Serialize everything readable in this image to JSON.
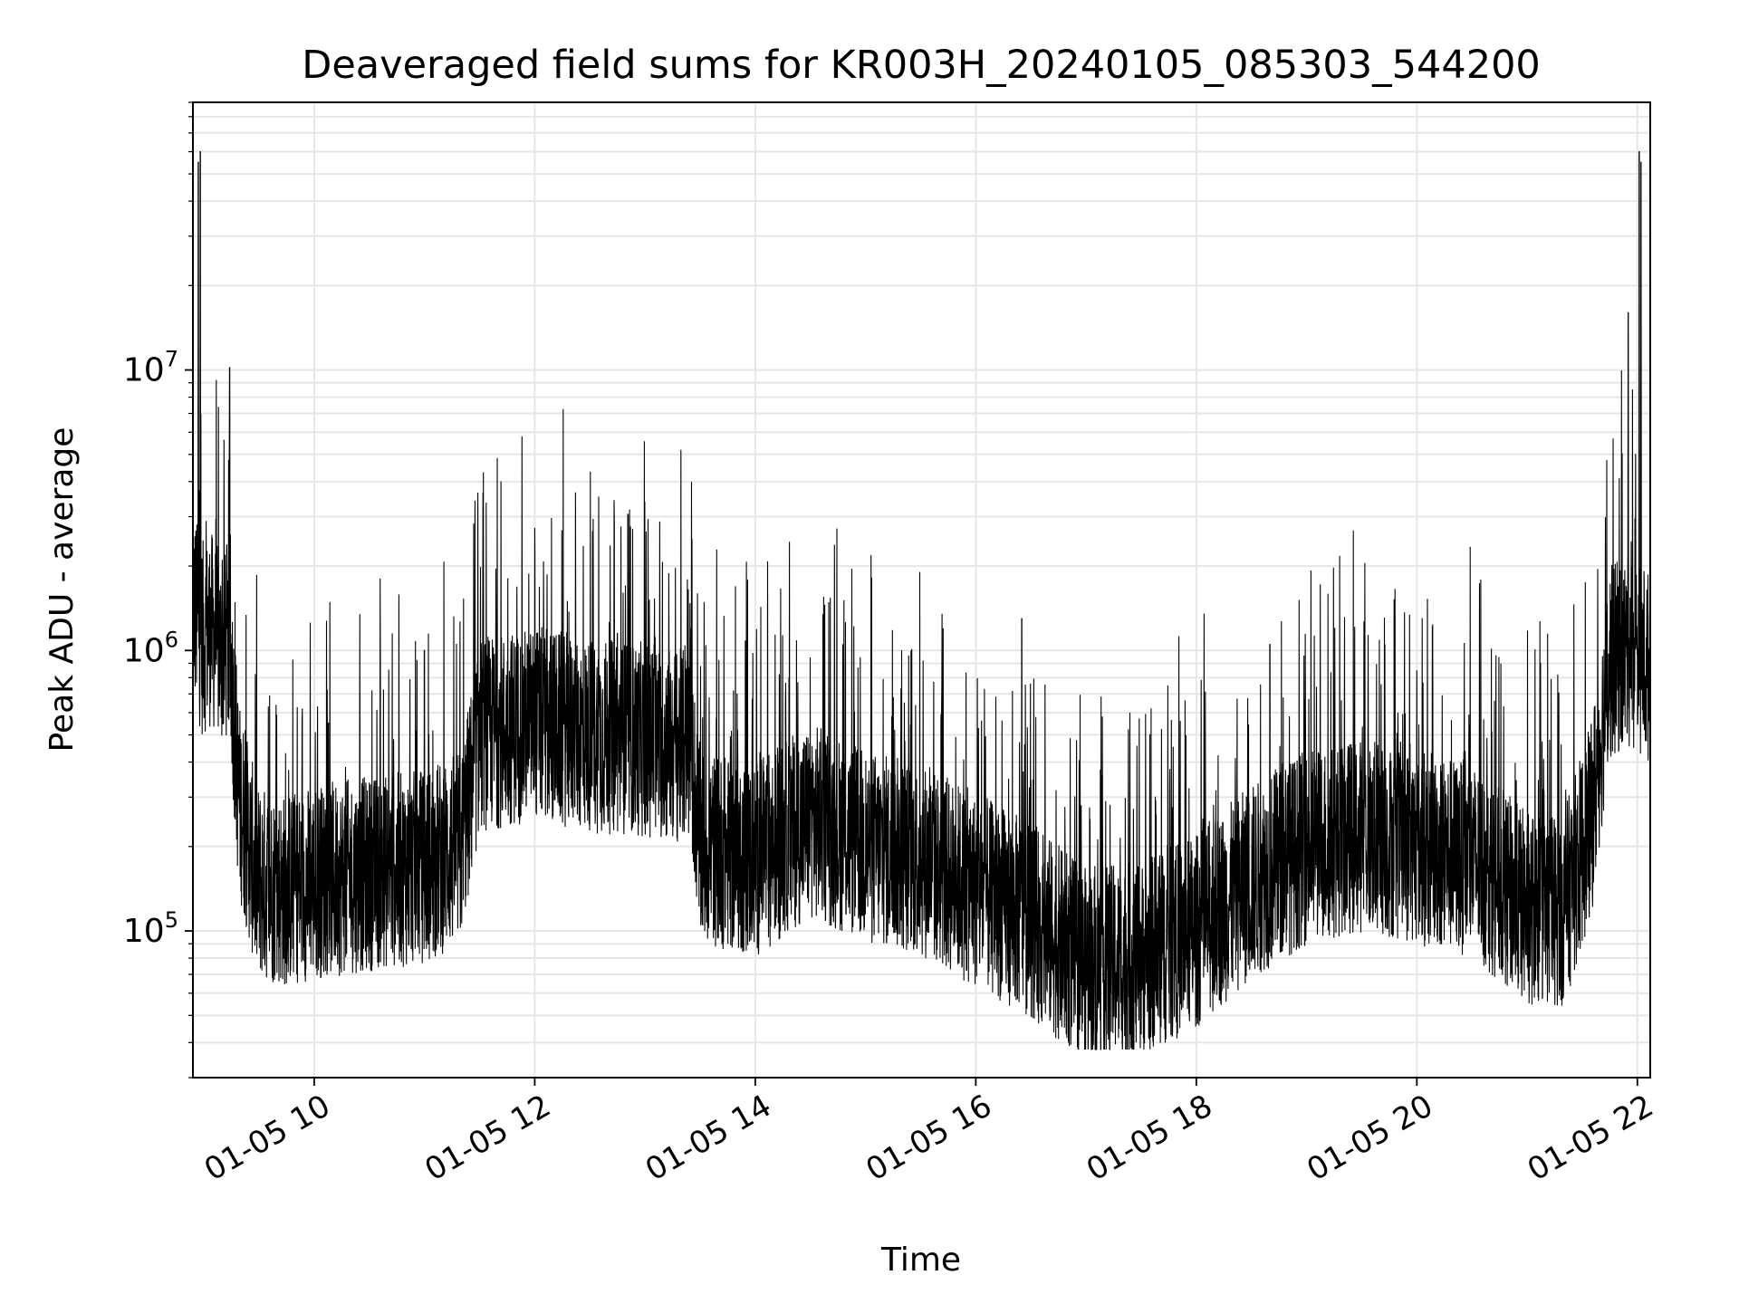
{
  "chart_data": {
    "type": "line",
    "title": "Deaveraged field sums for KR003H_20240105_085303_544200",
    "xlabel": "Time",
    "ylabel": "Peak ADU - average",
    "x_range": [
      "01-05 08:54",
      "01-05 22:07"
    ],
    "y_scale": "log",
    "ylim": [
      30000,
      90000000
    ],
    "grid": true,
    "x_ticks": [
      {
        "time": "01-05 10:00",
        "label": "01-05 10"
      },
      {
        "time": "01-05 12:00",
        "label": "01-05 12"
      },
      {
        "time": "01-05 14:00",
        "label": "01-05 14"
      },
      {
        "time": "01-05 16:00",
        "label": "01-05 16"
      },
      {
        "time": "01-05 18:00",
        "label": "01-05 18"
      },
      {
        "time": "01-05 20:00",
        "label": "01-05 20"
      },
      {
        "time": "01-05 22:00",
        "label": "01-05 22"
      }
    ],
    "y_ticks": [
      {
        "value": 100000,
        "base": "10",
        "exp": "5"
      },
      {
        "value": 1000000,
        "base": "10",
        "exp": "6"
      },
      {
        "value": 10000000,
        "base": "10",
        "exp": "7"
      }
    ],
    "series": [
      {
        "color": "#000000",
        "points": [
          [
            "01-05 08:54",
            1500000
          ],
          [
            "01-05 08:59",
            1100000
          ],
          [
            "01-05 09:04",
            1200000
          ],
          [
            "01-05 09:09",
            1000000
          ],
          [
            "01-05 09:14",
            1050000
          ],
          [
            "01-05 09:19",
            300000
          ],
          [
            "01-05 09:29",
            150000
          ],
          [
            "01-05 09:44",
            140000
          ],
          [
            "01-05 10:00",
            150000
          ],
          [
            "01-05 10:30",
            160000
          ],
          [
            "01-05 11:00",
            170000
          ],
          [
            "01-05 11:20",
            200000
          ],
          [
            "01-05 11:30",
            500000
          ],
          [
            "01-05 12:00",
            550000
          ],
          [
            "01-05 12:30",
            500000
          ],
          [
            "01-05 13:00",
            480000
          ],
          [
            "01-05 13:25",
            450000
          ],
          [
            "01-05 13:30",
            200000
          ],
          [
            "01-05 14:00",
            180000
          ],
          [
            "01-05 14:30",
            250000
          ],
          [
            "01-05 15:00",
            200000
          ],
          [
            "01-05 15:30",
            180000
          ],
          [
            "01-05 16:00",
            140000
          ],
          [
            "01-05 16:30",
            110000
          ],
          [
            "01-05 17:00",
            75000
          ],
          [
            "01-05 17:30",
            80000
          ],
          [
            "01-05 18:00",
            100000
          ],
          [
            "01-05 18:30",
            150000
          ],
          [
            "01-05 19:00",
            200000
          ],
          [
            "01-05 19:30",
            220000
          ],
          [
            "01-05 20:00",
            200000
          ],
          [
            "01-05 20:30",
            180000
          ],
          [
            "01-05 21:00",
            120000
          ],
          [
            "01-05 21:20",
            120000
          ],
          [
            "01-05 21:35",
            250000
          ],
          [
            "01-05 21:45",
            900000
          ],
          [
            "01-05 21:55",
            1000000
          ],
          [
            "01-05 22:02",
            950000
          ],
          [
            "01-05 22:07",
            850000
          ]
        ],
        "spikes": [
          [
            "01-05 08:57",
            55000000
          ],
          [
            "01-05 08:58",
            60000000
          ],
          [
            "01-05 09:14",
            10200000
          ],
          [
            "01-05 11:00",
            1000000
          ],
          [
            "01-05 12:05",
            1100000
          ],
          [
            "01-05 12:45",
            1150000
          ],
          [
            "01-05 13:05",
            1050000
          ],
          [
            "01-05 16:25",
            1300000
          ],
          [
            "01-05 18:40",
            1050000
          ],
          [
            "01-05 21:55",
            16000000
          ],
          [
            "01-05 22:01",
            60000000
          ],
          [
            "01-05 22:02",
            55000000
          ]
        ]
      }
    ]
  }
}
